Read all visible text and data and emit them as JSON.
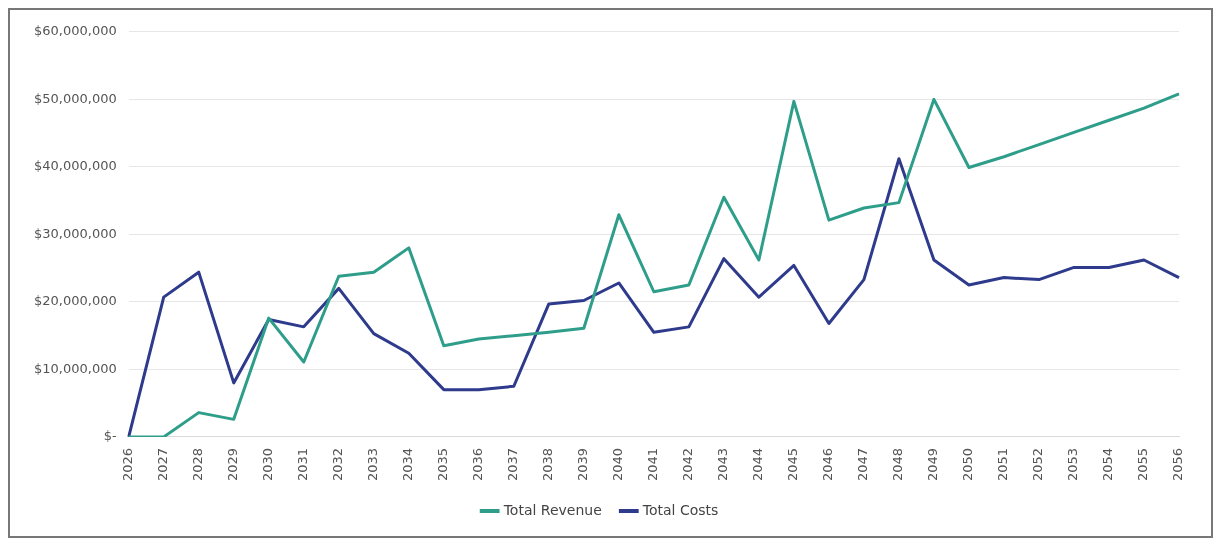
{
  "chart_data": {
    "type": "line",
    "categories": [
      "2026",
      "2027",
      "2028",
      "2029",
      "2030",
      "2031",
      "2032",
      "2033",
      "2034",
      "2035",
      "2036",
      "2037",
      "2038",
      "2039",
      "2040",
      "2041",
      "2042",
      "2043",
      "2044",
      "2045",
      "2046",
      "2047",
      "2048",
      "2049",
      "2050",
      "2051",
      "2052",
      "2053",
      "2054",
      "2055",
      "2056"
    ],
    "series": [
      {
        "name": "Total Revenue",
        "color": "#2e9e8a",
        "values": [
          0,
          0,
          3600000,
          2600000,
          17600000,
          11100000,
          23800000,
          24400000,
          28000000,
          13500000,
          14500000,
          15000000,
          15500000,
          16100000,
          32900000,
          21500000,
          22500000,
          35500000,
          26200000,
          49700000,
          32100000,
          33900000,
          34700000,
          50000000,
          39900000,
          41500000,
          43300000,
          45100000,
          46900000,
          48700000,
          50800000
        ]
      },
      {
        "name": "Total Costs",
        "color": "#2e3a8c",
        "values": [
          0,
          20700000,
          24400000,
          8000000,
          17400000,
          16300000,
          22000000,
          15300000,
          12400000,
          7000000,
          7000000,
          7500000,
          19700000,
          20200000,
          22800000,
          15500000,
          16300000,
          26400000,
          20700000,
          25400000,
          16800000,
          23300000,
          41200000,
          26200000,
          22500000,
          23600000,
          23300000,
          25100000,
          25100000,
          26200000,
          23600000
        ]
      }
    ],
    "ylim": [
      0,
      60000000
    ],
    "yticks": [
      {
        "value": 0,
        "label": "$-"
      },
      {
        "value": 10000000,
        "label": "$10,000,000"
      },
      {
        "value": 20000000,
        "label": "$20,000,000"
      },
      {
        "value": 30000000,
        "label": "$30,000,000"
      },
      {
        "value": 40000000,
        "label": "$40,000,000"
      },
      {
        "value": 50000000,
        "label": "$50,000,000"
      },
      {
        "value": 60000000,
        "label": "$60,000,000"
      }
    ],
    "grid": "y",
    "legend": "bottom",
    "marker": "none",
    "line_style": "solid"
  }
}
